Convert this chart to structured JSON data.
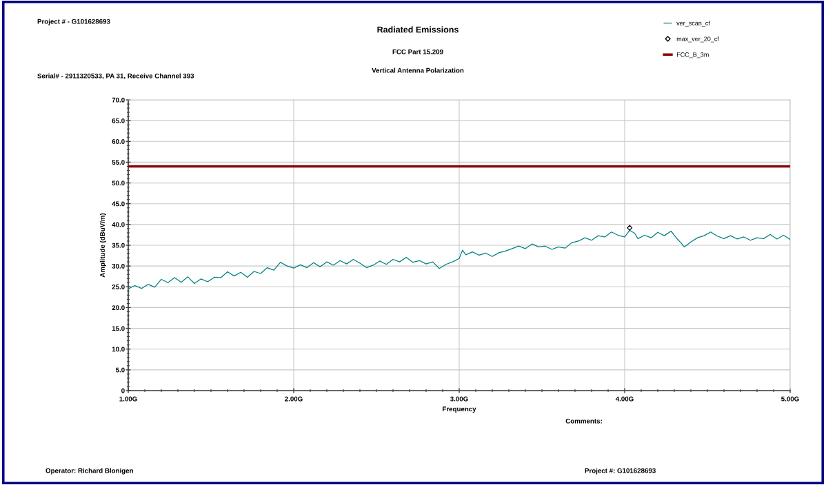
{
  "chart_data": {
    "type": "line",
    "title": "Radiated Emissions",
    "subtitle": "FCC Part 15.209",
    "xlabel": "Frequency",
    "ylabel": "Amplitude (dBuV/m)",
    "annotations": [
      "Project # - G101628693",
      "Serial# - 2911320533, PA 31, Receive Channel 393",
      "Vertical Antenna Polarization",
      "Comments:",
      "Operator: Richard Blonigen",
      "Project #: G101628693"
    ],
    "series": [
      {
        "name": "ver_scan_cf",
        "color": "#008080",
        "x": [
          1.0,
          1.04,
          1.08,
          1.12,
          1.16,
          1.2,
          1.24,
          1.28,
          1.32,
          1.36,
          1.4,
          1.44,
          1.48,
          1.52,
          1.56,
          1.6,
          1.64,
          1.68,
          1.72,
          1.76,
          1.8,
          1.84,
          1.88,
          1.92,
          1.96,
          2.0,
          2.04,
          2.08,
          2.12,
          2.16,
          2.2,
          2.24,
          2.28,
          2.32,
          2.36,
          2.4,
          2.44,
          2.48,
          2.52,
          2.56,
          2.6,
          2.64,
          2.68,
          2.72,
          2.76,
          2.8,
          2.84,
          2.88,
          2.92,
          2.96,
          3.0,
          3.02,
          3.04,
          3.08,
          3.12,
          3.16,
          3.2,
          3.24,
          3.28,
          3.32,
          3.36,
          3.4,
          3.44,
          3.48,
          3.52,
          3.56,
          3.6,
          3.64,
          3.68,
          3.72,
          3.76,
          3.8,
          3.84,
          3.88,
          3.92,
          3.96,
          4.0,
          4.03,
          4.06,
          4.08,
          4.12,
          4.16,
          4.2,
          4.24,
          4.28,
          4.32,
          4.34,
          4.36,
          4.4,
          4.44,
          4.48,
          4.52,
          4.56,
          4.6,
          4.64,
          4.68,
          4.72,
          4.76,
          4.8,
          4.84,
          4.88,
          4.92,
          4.96,
          5.0
        ],
        "values": [
          24.5,
          25.3,
          24.6,
          25.6,
          24.9,
          26.8,
          26.0,
          27.2,
          26.1,
          27.4,
          25.8,
          26.9,
          26.2,
          27.3,
          27.2,
          28.6,
          27.6,
          28.5,
          27.3,
          28.7,
          28.2,
          29.6,
          29.0,
          30.9,
          30.0,
          29.5,
          30.3,
          29.6,
          30.8,
          29.8,
          31.0,
          30.2,
          31.3,
          30.5,
          31.6,
          30.7,
          29.6,
          30.2,
          31.2,
          30.4,
          31.6,
          31.0,
          32.1,
          30.9,
          31.3,
          30.5,
          31.0,
          29.4,
          30.4,
          31.0,
          31.8,
          33.8,
          32.7,
          33.4,
          32.6,
          33.1,
          32.3,
          33.2,
          33.6,
          34.2,
          34.8,
          34.2,
          35.3,
          34.6,
          34.8,
          34.0,
          34.6,
          34.3,
          35.6,
          36.0,
          36.8,
          36.2,
          37.3,
          37.0,
          38.2,
          37.4,
          37.0,
          38.6,
          37.9,
          36.6,
          37.4,
          36.8,
          38.1,
          37.3,
          38.4,
          36.4,
          35.6,
          34.6,
          35.8,
          36.8,
          37.3,
          38.2,
          37.2,
          36.6,
          37.3,
          36.5,
          37.0,
          36.2,
          36.8,
          36.6,
          37.6,
          36.5,
          37.4,
          36.4
        ]
      },
      {
        "name": "max_ver_20_cf",
        "type": "scatter",
        "marker": "diamond",
        "color": "#000000",
        "x": [
          4.03
        ],
        "values": [
          39.2
        ]
      },
      {
        "name": "FCC_B_3m",
        "color": "#8b0000",
        "x": [
          1.0,
          5.0
        ],
        "values": [
          54.0,
          54.0
        ]
      }
    ],
    "xlim": [
      1.0,
      5.0
    ],
    "ylim": [
      0,
      70
    ],
    "xticks": [
      {
        "value": 1.0,
        "label": "1.00G"
      },
      {
        "value": 2.0,
        "label": "2.00G"
      },
      {
        "value": 3.0,
        "label": "3.00G"
      },
      {
        "value": 4.0,
        "label": "4.00G"
      },
      {
        "value": 5.0,
        "label": "5.00G"
      }
    ],
    "yticks": [
      0,
      {
        "value": 5,
        "label": "5.0"
      },
      {
        "value": 10,
        "label": "10.0"
      },
      {
        "value": 15,
        "label": "15.0"
      },
      {
        "value": 20,
        "label": "20.0"
      },
      {
        "value": 25,
        "label": "25.0"
      },
      {
        "value": 30,
        "label": "30.0"
      },
      {
        "value": 35,
        "label": "35.0"
      },
      {
        "value": 40,
        "label": "40.0"
      },
      {
        "value": 45,
        "label": "45.0"
      },
      {
        "value": 50,
        "label": "50.0"
      },
      {
        "value": 55,
        "label": "55.0"
      },
      {
        "value": 60,
        "label": "60.0"
      },
      {
        "value": 65,
        "label": "65.0"
      },
      {
        "value": 70,
        "label": "70.0"
      }
    ],
    "grid": true,
    "legend": "top right"
  }
}
